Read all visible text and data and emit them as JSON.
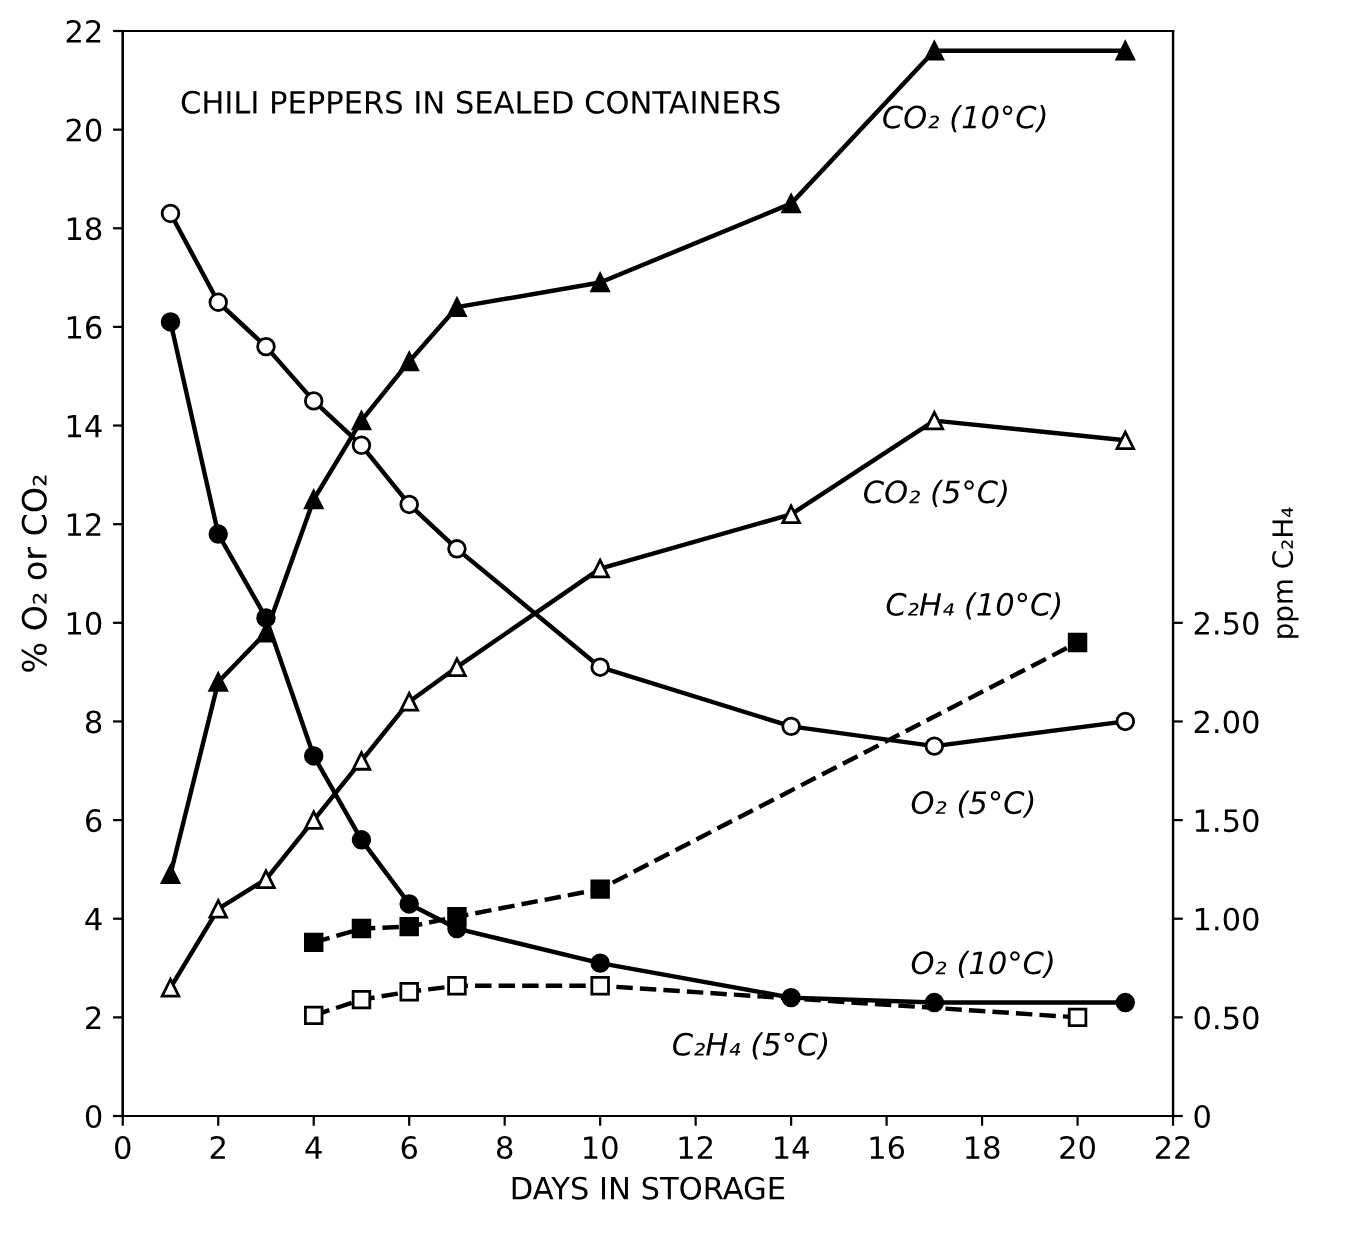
{
  "chart_data": {
    "type": "line",
    "title": "CHILI PEPPERS IN SEALED CONTAINERS",
    "xlabel": "DAYS IN STORAGE",
    "ylabel": "% O₂ or CO₂",
    "y2label": "ppm C₂H₄",
    "xlim": [
      0,
      22
    ],
    "xticks": [
      0,
      2,
      4,
      6,
      8,
      10,
      12,
      14,
      16,
      18,
      20,
      22
    ],
    "ylim": [
      0,
      22
    ],
    "yticks": [
      0,
      2,
      4,
      6,
      8,
      10,
      12,
      14,
      16,
      18,
      20,
      22
    ],
    "y2lim": [
      0,
      5.5
    ],
    "y2ticks": [
      0,
      {
        "value": 0.5,
        "label": "0.50"
      },
      {
        "value": 1,
        "label": "1.00"
      },
      {
        "value": 1.5,
        "label": "1.50"
      },
      {
        "value": 2,
        "label": "2.00"
      },
      {
        "value": 2.5,
        "label": "2.50"
      }
    ],
    "grid": false,
    "legend": false,
    "series": [
      {
        "name": "CO₂ (10°C)",
        "color": "#000000",
        "marker": "triangle",
        "line_style": "solid",
        "x": [
          1,
          2,
          3,
          4,
          5,
          6,
          7,
          10,
          14,
          17,
          21
        ],
        "values": [
          4.9,
          8.8,
          9.8,
          12.5,
          14.1,
          15.3,
          16.4,
          16.9,
          18.5,
          21.6,
          21.6
        ]
      },
      {
        "name": "CO₂ (5°C)",
        "color": "#000000",
        "marker": "triangle",
        "line_style": "solid",
        "x": [
          1,
          2,
          3,
          4,
          5,
          6,
          7,
          10,
          14,
          17,
          21
        ],
        "values": [
          2.6,
          4.2,
          4.8,
          6.0,
          7.2,
          8.4,
          9.1,
          11.1,
          12.2,
          14.1,
          13.7
        ]
      },
      {
        "name": "O₂ (5°C)",
        "color": "#000000",
        "marker": "circle",
        "line_style": "solid",
        "x": [
          1,
          2,
          3,
          4,
          5,
          6,
          7,
          10,
          14,
          17,
          21
        ],
        "values": [
          18.3,
          16.5,
          15.6,
          14.5,
          13.6,
          12.4,
          11.5,
          9.1,
          7.9,
          7.5,
          8.0
        ]
      },
      {
        "name": "O₂ (10°C)",
        "color": "#000000",
        "marker": "circle",
        "line_style": "solid",
        "x": [
          1,
          2,
          3,
          4,
          5,
          6,
          7,
          10,
          14,
          17,
          21
        ],
        "values": [
          16.1,
          11.8,
          10.1,
          7.3,
          5.6,
          4.3,
          3.8,
          3.1,
          2.4,
          2.3,
          2.3
        ]
      },
      {
        "name": "C₂H₄ (10°C)",
        "color": "#000000",
        "marker": "square",
        "line_style": "dashed",
        "axis": "y2",
        "x": [
          4,
          5,
          6,
          7,
          10,
          20
        ],
        "values": [
          0.88,
          0.95,
          0.96,
          1.01,
          1.15,
          2.4
        ]
      },
      {
        "name": "C₂H₄ (5°C)",
        "color": "#000000",
        "marker": "square",
        "line_style": "dashed",
        "axis": "y2",
        "x": [
          4,
          5,
          6,
          7,
          10,
          20
        ],
        "values": [
          0.51,
          0.59,
          0.63,
          0.66,
          0.66,
          0.5
        ]
      }
    ]
  }
}
